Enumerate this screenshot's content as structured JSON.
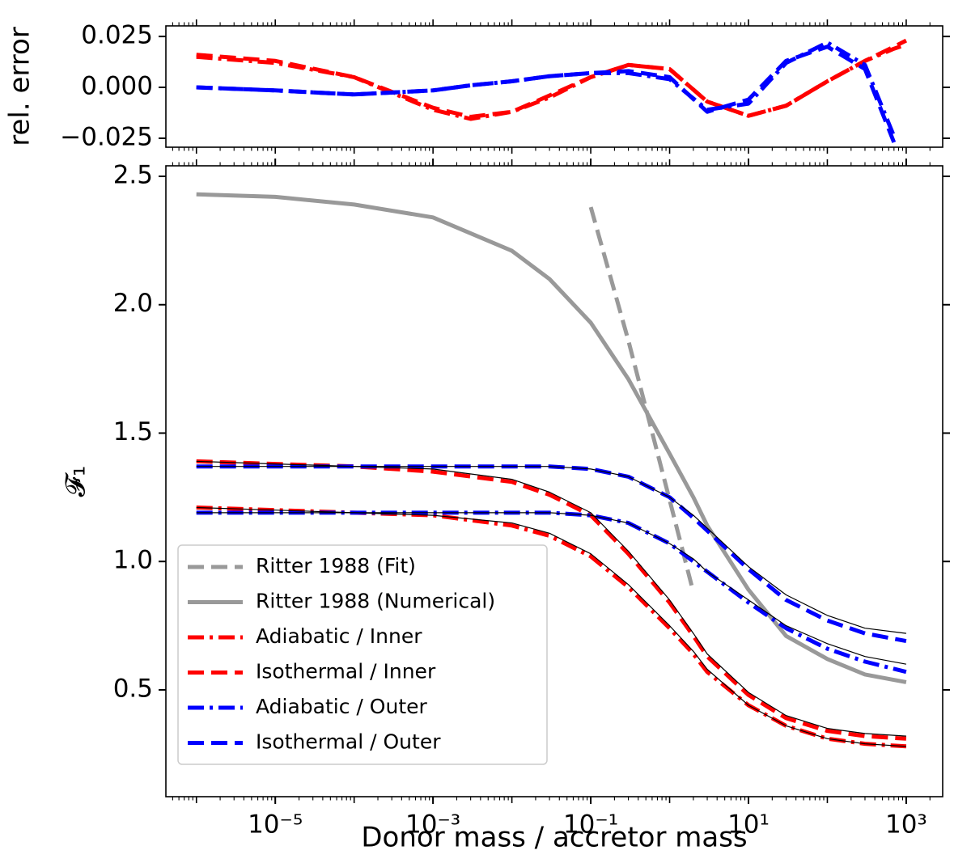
{
  "chart_data": [
    {
      "type": "line",
      "ylabel": "rel. error",
      "x": [
        1e-06,
        1e-05,
        0.0001,
        0.001,
        0.003,
        0.01,
        0.03,
        0.1,
        0.3,
        1,
        3,
        10,
        30,
        100,
        300,
        700,
        1000
      ],
      "xlim": [
        4.1e-07,
        2900
      ],
      "log_x": true,
      "ylim": [
        -0.0294,
        0.0302
      ],
      "yticks": [
        {
          "value": 0.025,
          "label": "0.025"
        },
        {
          "value": 0,
          "label": "0.000"
        },
        {
          "value": -0.025,
          "label": "−0.025"
        }
      ],
      "series": [
        {
          "color": "#ff0000",
          "linestyle": "dashdot",
          "values": [
            0.015,
            0.012,
            0.005,
            -0.011,
            -0.0155,
            -0.012,
            -0.005,
            0.005,
            0.011,
            0.009,
            -0.007,
            -0.014,
            -0.009,
            0.003,
            0.013,
            0.019,
            0.021
          ]
        },
        {
          "color": "#ff0000",
          "linestyle": "dashed",
          "values": [
            0.016,
            0.013,
            0.005,
            -0.01,
            -0.0145,
            -0.012,
            -0.004,
            0.005,
            0.011,
            0.009,
            -0.007,
            -0.014,
            -0.009,
            0.003,
            0.013,
            0.02,
            0.023
          ]
        },
        {
          "color": "#0000ff",
          "linestyle": "dashdot",
          "values": [
            0,
            -0.0015,
            -0.0035,
            -0.0015,
            0.001,
            0.003,
            0.0055,
            0.007,
            0.007,
            0.004,
            -0.011,
            -0.008,
            0.012,
            0.022,
            0.011,
            -0.024,
            null
          ]
        },
        {
          "color": "#0000ff",
          "linestyle": "dashed",
          "values": [
            0,
            -0.0015,
            -0.0035,
            -0.0015,
            0.001,
            0.003,
            0.0055,
            0.007,
            0.008,
            0.005,
            -0.012,
            -0.006,
            0.013,
            0.02,
            0.009,
            -0.027,
            null
          ]
        }
      ]
    },
    {
      "type": "line",
      "xlabel": "Donor mass / accretor mass",
      "ylabel": "𝓕₁",
      "legend": "lower left",
      "x": [
        1e-06,
        1e-05,
        0.0001,
        0.001,
        0.01,
        0.03,
        0.1,
        0.3,
        1,
        2,
        3,
        10,
        30,
        100,
        300,
        1000
      ],
      "xlim": [
        4.1e-07,
        2900
      ],
      "log_x": true,
      "xticks": [
        {
          "value": 1e-05,
          "label": "10⁻⁵"
        },
        {
          "value": 0.001,
          "label": "10⁻³"
        },
        {
          "value": 0.1,
          "label": "10⁻¹"
        },
        {
          "value": 10,
          "label": "10¹"
        },
        {
          "value": 1000,
          "label": "10³"
        }
      ],
      "ylim": [
        0.084,
        2.541
      ],
      "yticks": [
        0.5,
        {
          "value": 1,
          "label": "1.0"
        },
        1.5,
        {
          "value": 2,
          "label": "2.0"
        },
        2.5
      ],
      "series": [
        {
          "name": "Ritter 1988 (Fit)",
          "color": "#999999",
          "linestyle": "dashed",
          "values": [
            null,
            null,
            null,
            null,
            null,
            null,
            2.38,
            1.86,
            1.24,
            0.88,
            null,
            null,
            null,
            null,
            null,
            null
          ]
        },
        {
          "name": "Ritter 1988 (Numerical)",
          "color": "#999999",
          "linestyle": "solid",
          "values": [
            2.43,
            2.42,
            2.39,
            2.34,
            2.21,
            2.1,
            1.93,
            1.71,
            1.42,
            1.25,
            1.14,
            0.89,
            0.71,
            0.62,
            0.56,
            0.53
          ]
        },
        {
          "name": "Adiabatic / Inner",
          "color": "#ff0000",
          "linestyle": "dashdot",
          "values": [
            1.21,
            1.2,
            1.19,
            1.18,
            1.14,
            1.1,
            1.02,
            0.9,
            0.74,
            0.64,
            0.57,
            0.44,
            0.36,
            0.31,
            0.29,
            0.28
          ]
        },
        {
          "name": "Isothermal / Inner",
          "color": "#ff0000",
          "linestyle": "dashed",
          "values": [
            1.39,
            1.38,
            1.37,
            1.35,
            1.31,
            1.26,
            1.18,
            1.03,
            0.84,
            0.71,
            0.63,
            0.48,
            0.39,
            0.34,
            0.32,
            0.31
          ]
        },
        {
          "name": "Adiabatic / Outer",
          "color": "#0000ff",
          "linestyle": "dashdot",
          "values": [
            1.19,
            1.19,
            1.19,
            1.19,
            1.19,
            1.19,
            1.18,
            1.15,
            1.07,
            1.0,
            0.96,
            0.84,
            0.74,
            0.66,
            0.61,
            0.57
          ]
        },
        {
          "name": "Isothermal / Outer",
          "color": "#0000ff",
          "linestyle": "dashed",
          "values": [
            1.37,
            1.37,
            1.37,
            1.37,
            1.37,
            1.37,
            1.36,
            1.33,
            1.25,
            1.17,
            1.12,
            0.97,
            0.85,
            0.77,
            0.72,
            0.69
          ]
        },
        {
          "color": "#000000",
          "linestyle": "thin",
          "values": [
            1.21,
            1.2,
            1.19,
            1.18,
            1.15,
            1.11,
            1.03,
            0.91,
            0.75,
            0.65,
            0.58,
            0.44,
            0.36,
            0.31,
            0.29,
            0.28
          ]
        },
        {
          "color": "#000000",
          "linestyle": "thin",
          "values": [
            1.39,
            1.38,
            1.37,
            1.36,
            1.32,
            1.27,
            1.19,
            1.04,
            0.85,
            0.72,
            0.64,
            0.49,
            0.4,
            0.35,
            0.33,
            0.32
          ]
        },
        {
          "color": "#000000",
          "linestyle": "thin",
          "values": [
            1.19,
            1.19,
            1.19,
            1.19,
            1.19,
            1.19,
            1.18,
            1.15,
            1.07,
            1.01,
            0.96,
            0.85,
            0.75,
            0.68,
            0.63,
            0.6
          ]
        },
        {
          "color": "#000000",
          "linestyle": "thin",
          "values": [
            1.37,
            1.37,
            1.37,
            1.37,
            1.37,
            1.37,
            1.36,
            1.33,
            1.25,
            1.18,
            1.13,
            0.98,
            0.87,
            0.79,
            0.74,
            0.72
          ]
        }
      ]
    }
  ]
}
